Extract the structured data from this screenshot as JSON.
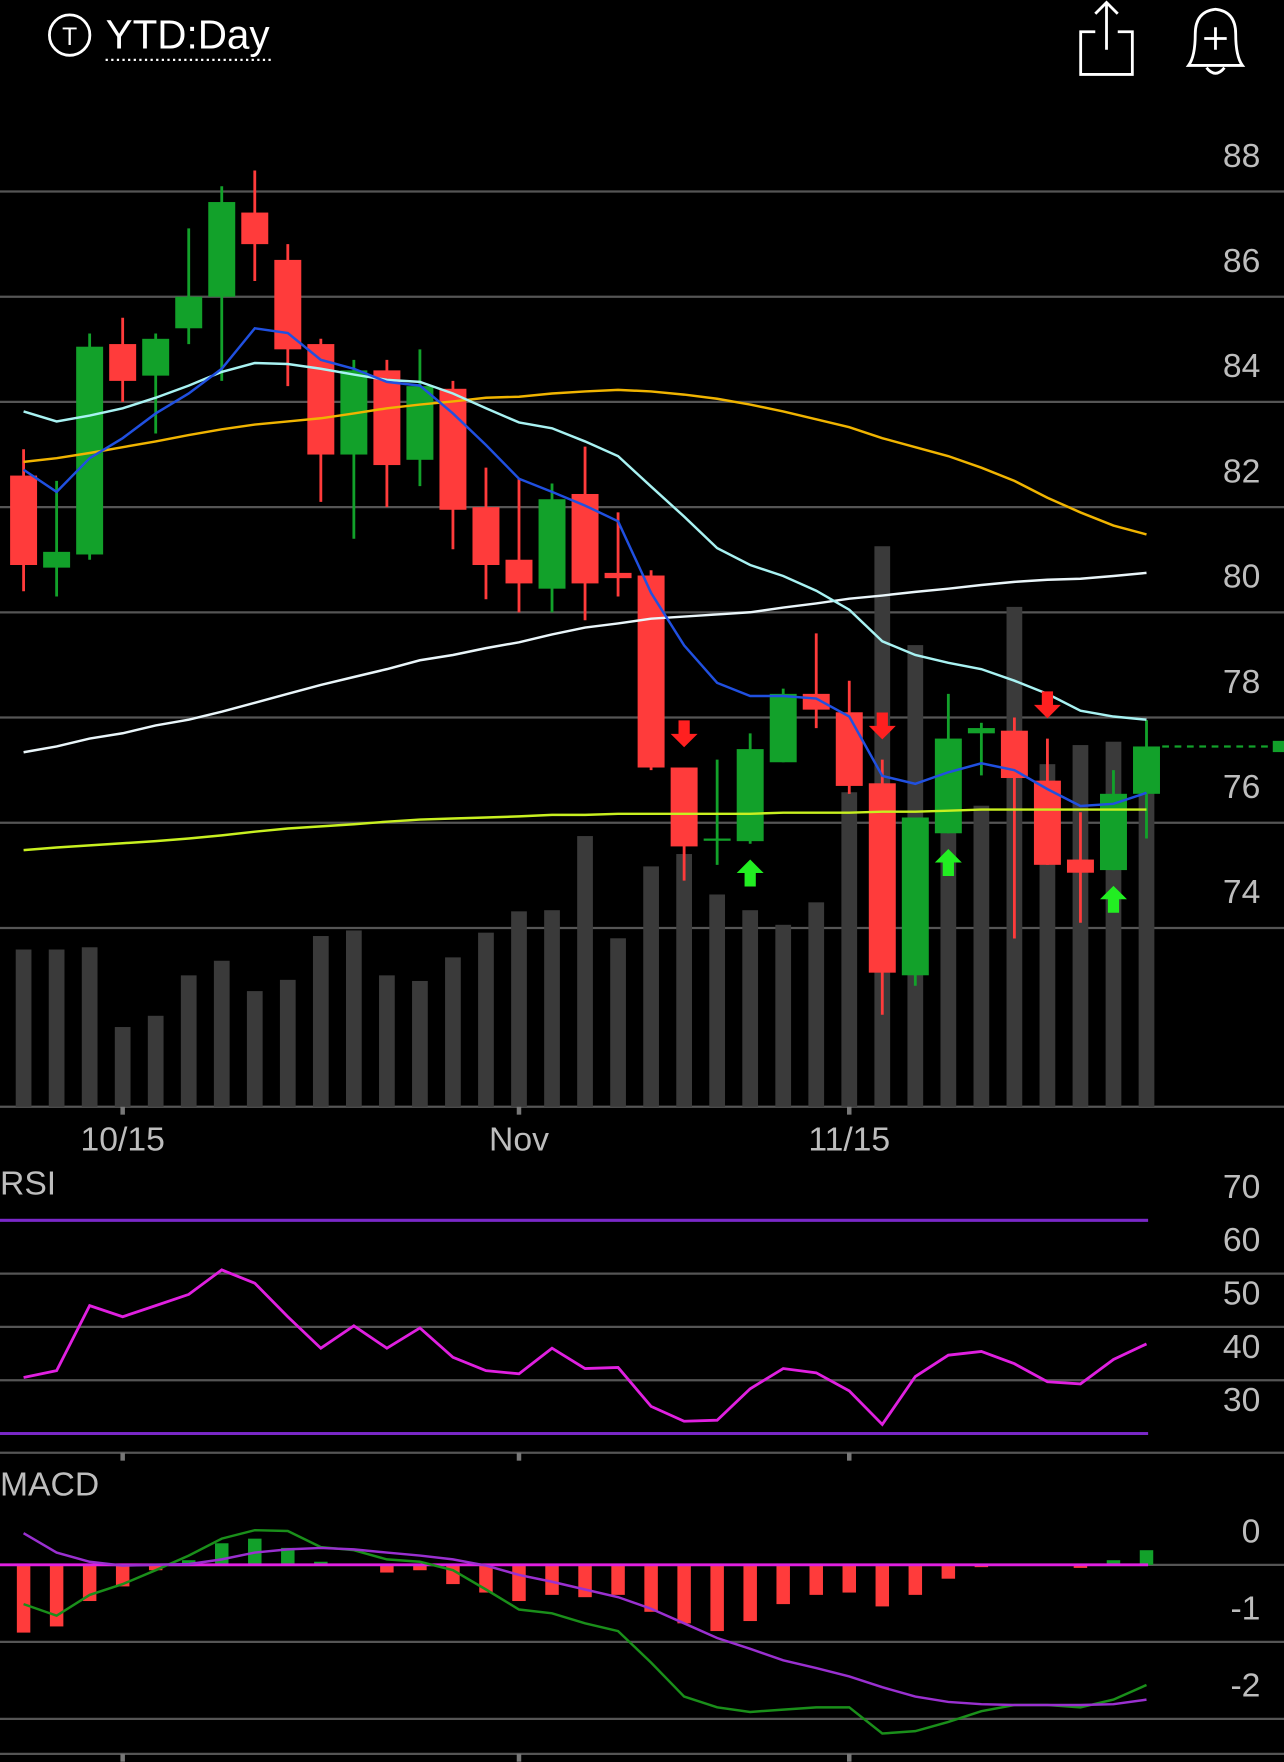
{
  "header": {
    "symbol_icon": "T",
    "title": "YTD:Day"
  },
  "chart_data": [
    {
      "type": "candlestick",
      "categories": [
        null,
        null,
        null,
        "10/15",
        null,
        null,
        null,
        null,
        null,
        null,
        null,
        null,
        null,
        null,
        null,
        "Nov",
        null,
        null,
        null,
        null,
        null,
        null,
        null,
        null,
        null,
        "11/15",
        null,
        null,
        null,
        null,
        null,
        null,
        null,
        null,
        null
      ],
      "open": [
        82.6,
        80.85,
        81.1,
        85.1,
        84.5,
        85.4,
        86.0,
        87.6,
        86.7,
        85.1,
        83.0,
        84.6,
        82.9,
        84.25,
        82.0,
        81.0,
        80.45,
        82.25,
        80.75,
        80.7,
        77.05,
        75.68,
        75.65,
        77.15,
        78.45,
        78.1,
        76.75,
        73.1,
        75.8,
        77.7,
        77.75,
        76.8,
        75.3,
        75.1,
        76.55
      ],
      "high": [
        83.1,
        82.5,
        85.3,
        85.6,
        85.3,
        87.3,
        88.1,
        88.4,
        87.0,
        85.2,
        84.8,
        84.8,
        85.0,
        84.4,
        82.75,
        82.55,
        82.45,
        83.15,
        81.9,
        80.8,
        77.05,
        77.2,
        77.7,
        78.55,
        79.6,
        78.7,
        77.2,
        76.1,
        78.45,
        77.9,
        78.0,
        77.6,
        76.2,
        77.0,
        77.95
      ],
      "low": [
        80.4,
        80.3,
        81.0,
        84.0,
        83.4,
        85.1,
        84.4,
        86.3,
        84.3,
        82.1,
        81.4,
        82.0,
        82.4,
        81.2,
        80.25,
        80.0,
        80.0,
        79.85,
        80.3,
        77.0,
        74.9,
        75.2,
        75.6,
        77.15,
        77.8,
        76.55,
        72.35,
        72.9,
        75.8,
        76.9,
        73.8,
        75.2,
        74.1,
        75.1,
        75.7
      ],
      "close": [
        80.9,
        81.15,
        85.05,
        84.4,
        85.2,
        86.0,
        87.8,
        87.0,
        85.0,
        83.0,
        84.6,
        82.8,
        84.3,
        81.95,
        80.9,
        80.55,
        82.15,
        80.55,
        80.65,
        77.05,
        75.55,
        75.7,
        77.4,
        78.45,
        78.15,
        76.7,
        73.15,
        76.1,
        77.6,
        77.8,
        76.85,
        75.2,
        75.05,
        76.55,
        77.45
      ],
      "up_color": "#12a12a",
      "down_color": "#ff3b3b",
      "ylim": [
        70.6,
        89.5
      ],
      "yticks": [
        74,
        76,
        78,
        80,
        82,
        84,
        86,
        88
      ],
      "volume": {
        "color": "#3a3a3a",
        "ylim": [
          0,
          530
        ],
        "values": [
          140,
          140,
          142,
          71,
          81,
          117,
          130,
          103,
          113,
          152,
          157,
          117,
          112,
          133,
          155,
          174,
          175,
          241,
          150,
          214,
          225,
          189,
          175,
          162,
          182,
          280,
          499,
          411,
          267,
          268,
          445,
          305,
          322,
          325,
          285
        ]
      },
      "moving_averages": [
        {
          "color": "#c8f020",
          "values": [
            75.48,
            75.53,
            75.57,
            75.61,
            75.65,
            75.7,
            75.76,
            75.83,
            75.89,
            75.93,
            75.97,
            76.02,
            76.06,
            76.08,
            76.1,
            76.12,
            76.15,
            76.15,
            76.17,
            76.17,
            76.17,
            76.17,
            76.17,
            76.19,
            76.19,
            76.19,
            76.21,
            76.21,
            76.23,
            76.25,
            76.25,
            76.25,
            76.25,
            76.25,
            76.25
          ]
        },
        {
          "color": "#eaf6fa",
          "values": [
            77.34,
            77.45,
            77.6,
            77.7,
            77.85,
            77.96,
            78.11,
            78.28,
            78.45,
            78.62,
            78.77,
            78.92,
            79.09,
            79.19,
            79.32,
            79.43,
            79.58,
            79.71,
            79.79,
            79.88,
            79.92,
            79.96,
            80.0,
            80.09,
            80.17,
            80.26,
            80.32,
            80.39,
            80.45,
            80.52,
            80.58,
            80.62,
            80.64,
            80.69,
            80.75
          ]
        },
        {
          "color": "#f0b400",
          "values": [
            82.86,
            82.93,
            83.03,
            83.14,
            83.25,
            83.37,
            83.48,
            83.57,
            83.63,
            83.69,
            83.78,
            83.88,
            83.95,
            84.01,
            84.08,
            84.1,
            84.16,
            84.2,
            84.23,
            84.2,
            84.14,
            84.06,
            83.95,
            83.82,
            83.67,
            83.52,
            83.31,
            83.14,
            82.97,
            82.75,
            82.5,
            82.18,
            81.9,
            81.65,
            81.48
          ]
        },
        {
          "color": "#a8f2f2",
          "values": [
            83.82,
            83.63,
            83.74,
            83.88,
            84.08,
            84.31,
            84.57,
            84.74,
            84.72,
            84.63,
            84.52,
            84.42,
            84.38,
            84.16,
            83.88,
            83.61,
            83.5,
            83.25,
            82.97,
            82.39,
            81.82,
            81.22,
            80.9,
            80.69,
            80.41,
            80.05,
            79.45,
            79.19,
            79.04,
            78.92,
            78.7,
            78.45,
            78.13,
            78.02,
            77.96
          ]
        },
        {
          "color": "#2050e0",
          "values": [
            82.71,
            82.29,
            82.93,
            83.31,
            83.78,
            84.16,
            84.63,
            85.4,
            85.31,
            84.8,
            84.63,
            84.38,
            84.31,
            83.78,
            83.18,
            82.54,
            82.29,
            82.03,
            81.73,
            80.37,
            79.37,
            78.66,
            78.41,
            78.41,
            78.36,
            78.02,
            76.89,
            76.74,
            76.96,
            77.13,
            77.0,
            76.64,
            76.32,
            76.36,
            76.57
          ]
        }
      ],
      "signals": {
        "buy": [
          22,
          28,
          33
        ],
        "sell": [
          20,
          26,
          31
        ],
        "buy_color": "#22ee22",
        "sell_color": "#ff2020"
      }
    },
    {
      "type": "line",
      "title": "RSI",
      "color": "#e020e0",
      "values": [
        40.5,
        41.8,
        54.0,
        51.9,
        54.0,
        56.1,
        60.7,
        58.2,
        51.9,
        46.0,
        50.2,
        46.0,
        49.8,
        44.3,
        41.8,
        41.2,
        46.0,
        42.2,
        42.4,
        35.1,
        32.3,
        32.5,
        38.4,
        42.2,
        41.4,
        38.0,
        31.7,
        40.7,
        44.7,
        45.4,
        43.1,
        39.7,
        39.3,
        43.9,
        46.8
      ],
      "ylim": [
        26.6,
        79.7
      ],
      "yticks": [
        30,
        40,
        50,
        60,
        70
      ],
      "band_lines": [
        30,
        70
      ],
      "band_color": "#7a28c8"
    },
    {
      "type": "macd",
      "title": "MACD",
      "series": [
        {
          "color": "#1a8f1a",
          "values": [
            -0.51,
            -0.66,
            -0.39,
            -0.25,
            -0.07,
            0.12,
            0.34,
            0.45,
            0.44,
            0.23,
            0.19,
            0.07,
            0.04,
            -0.07,
            -0.32,
            -0.58,
            -0.63,
            -0.76,
            -0.86,
            -1.27,
            -1.71,
            -1.85,
            -1.91,
            -1.88,
            -1.85,
            -1.85,
            -2.19,
            -2.16,
            -2.04,
            -1.9,
            -1.82,
            -1.82,
            -1.85,
            -1.75,
            -1.56
          ]
        },
        {
          "color": "#9a30d0",
          "values": [
            0.41,
            0.16,
            0.04,
            -0.01,
            0,
            0.01,
            0.07,
            0.16,
            0.2,
            0.22,
            0.2,
            0.16,
            0.12,
            0.07,
            -0.01,
            -0.13,
            -0.22,
            -0.32,
            -0.42,
            -0.57,
            -0.76,
            -0.95,
            -1.09,
            -1.24,
            -1.34,
            -1.45,
            -1.59,
            -1.71,
            -1.78,
            -1.81,
            -1.82,
            -1.82,
            -1.82,
            -1.81,
            -1.75
          ]
        }
      ],
      "histogram": [
        -0.88,
        -0.8,
        -0.47,
        -0.28,
        -0.07,
        0.06,
        0.28,
        0.34,
        0.22,
        0.04,
        0,
        -0.1,
        -0.07,
        -0.25,
        -0.36,
        -0.47,
        -0.39,
        -0.42,
        -0.39,
        -0.61,
        -0.76,
        -0.86,
        -0.73,
        -0.51,
        -0.39,
        -0.36,
        -0.54,
        -0.39,
        -0.18,
        -0.03,
        -0.01,
        0,
        -0.04,
        0.06,
        0.19
      ],
      "zero_color": "#e020e0",
      "ylim": [
        -2.44,
        1.28
      ],
      "yticks": [
        -2,
        -1,
        0
      ]
    }
  ]
}
